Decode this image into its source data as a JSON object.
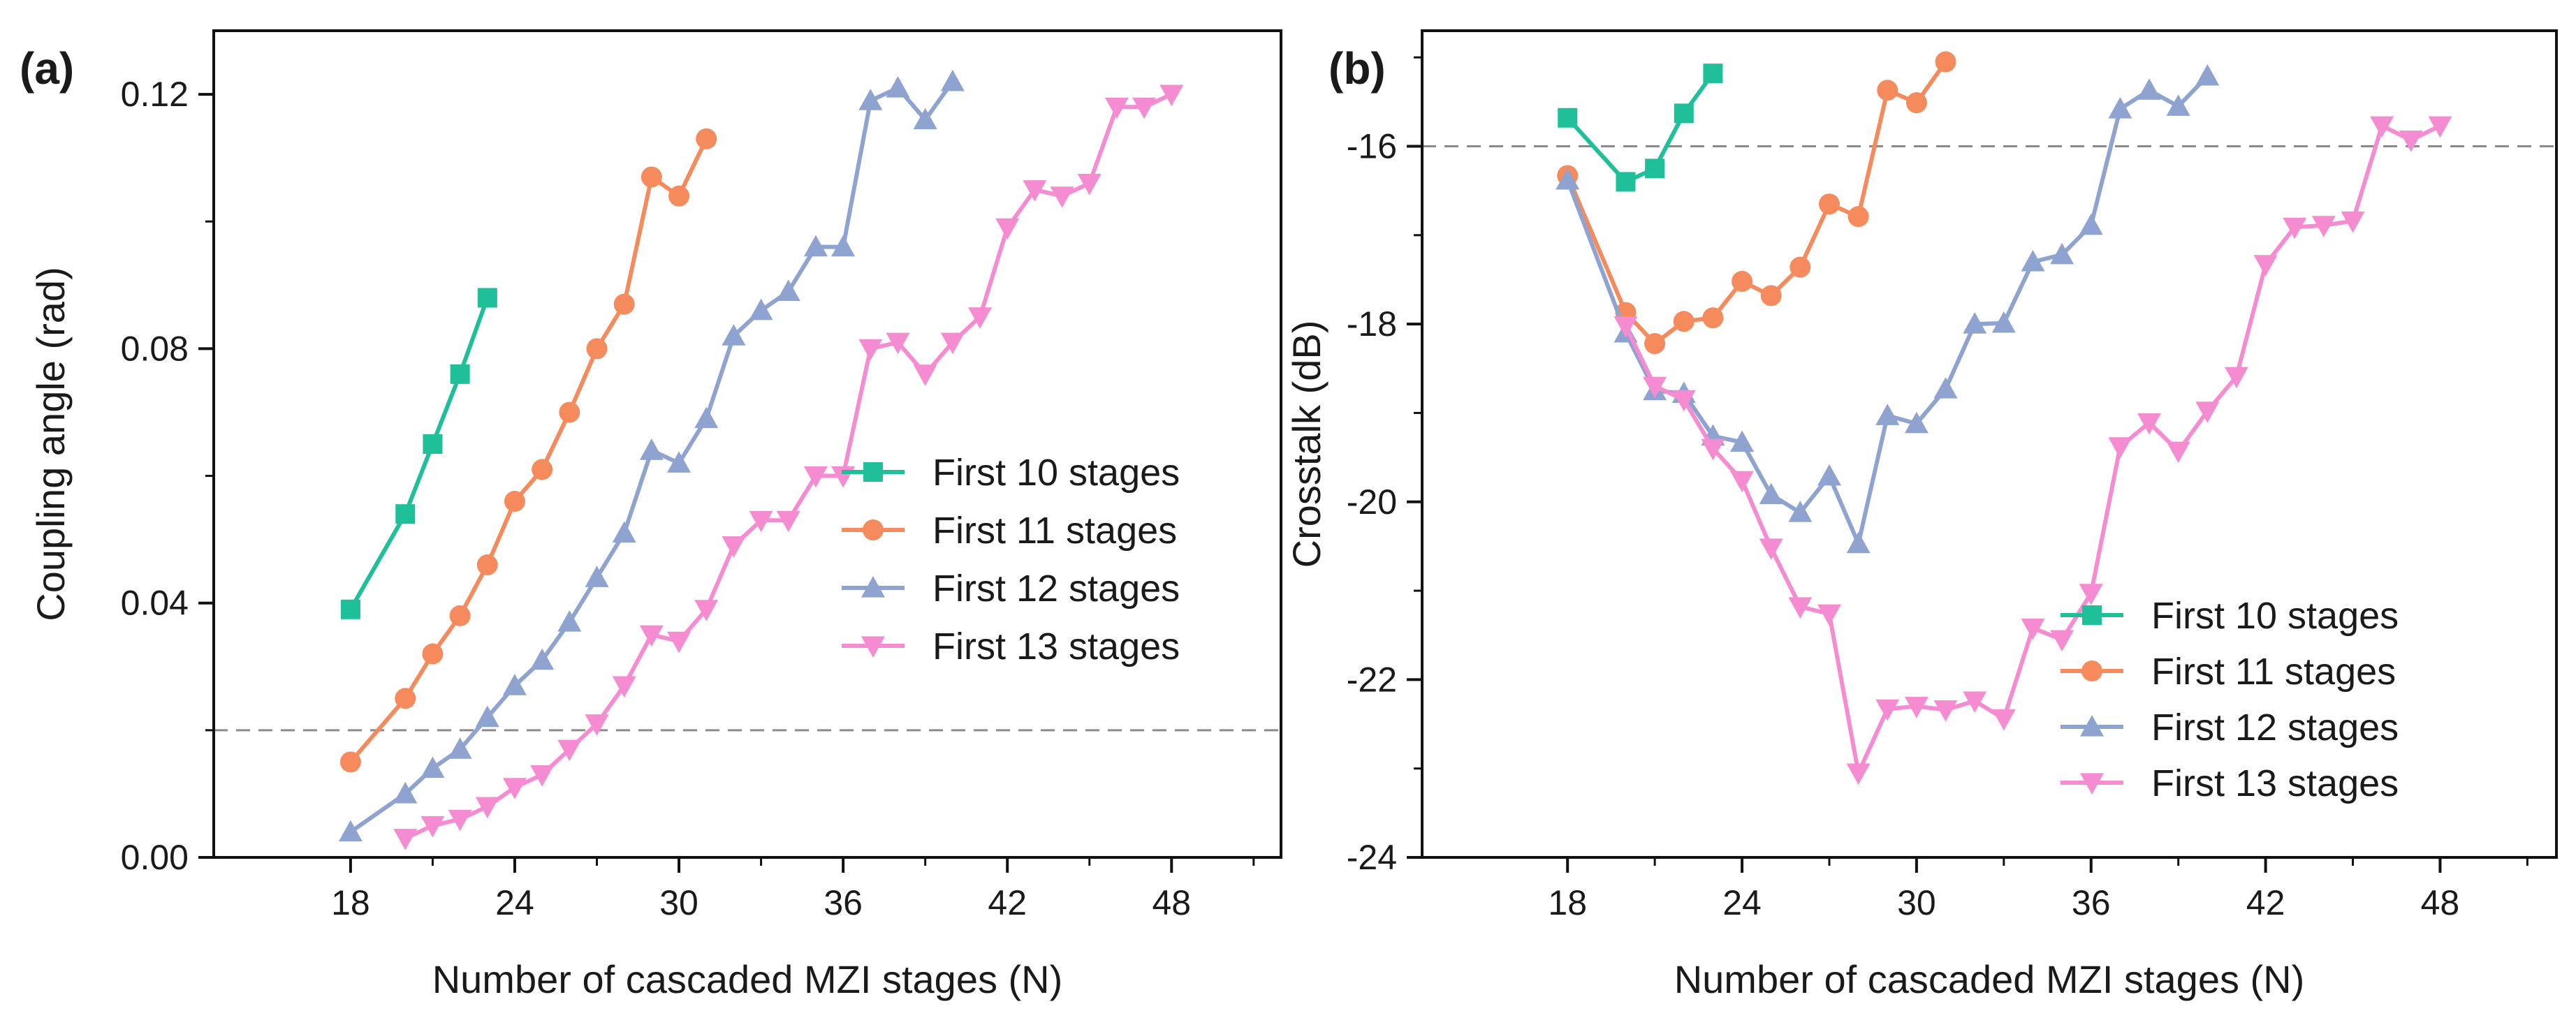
{
  "chart_data": [
    {
      "type": "line",
      "panel_label": "(a)",
      "xlabel": "Number of cascaded MZI stages (N)",
      "ylabel": "Coupling angle (rad)",
      "xlim": [
        13,
        52
      ],
      "ylim": [
        0,
        0.13
      ],
      "xticks": [
        18,
        24,
        30,
        36,
        42,
        48
      ],
      "xtick_labels": [
        "18",
        "24",
        "30",
        "36",
        "42",
        "48"
      ],
      "yticks": [
        0,
        0.04,
        0.08,
        0.12
      ],
      "ytick_labels": [
        "0.00",
        "0.04",
        "0.08",
        "0.12"
      ],
      "reference_line": {
        "y": 0.02,
        "style": "dashed"
      },
      "legend_position": "center-right",
      "grid": false,
      "series": [
        {
          "name": "First 10 stages",
          "color": "#1fbf9a",
          "marker": "square",
          "x": [
            18,
            20,
            21,
            22,
            23
          ],
          "y": [
            0.039,
            0.054,
            0.065,
            0.076,
            0.088
          ]
        },
        {
          "name": "First 11 stages",
          "color": "#f58a5c",
          "marker": "circle",
          "x": [
            18,
            20,
            21,
            22,
            23,
            24,
            25,
            26,
            27,
            28,
            29,
            30,
            31
          ],
          "y": [
            0.015,
            0.025,
            0.032,
            0.038,
            0.046,
            0.056,
            0.061,
            0.07,
            0.08,
            0.087,
            0.107,
            0.104,
            0.113
          ]
        },
        {
          "name": "First 12 stages",
          "color": "#8ea3cf",
          "marker": "triangle-up",
          "x": [
            18,
            20,
            21,
            22,
            23,
            24,
            25,
            26,
            27,
            28,
            29,
            30,
            31,
            32,
            33,
            34,
            35,
            36,
            37,
            38,
            39,
            40
          ],
          "y": [
            0.004,
            0.01,
            0.014,
            0.017,
            0.022,
            0.027,
            0.031,
            0.037,
            0.044,
            0.051,
            0.064,
            0.062,
            0.069,
            0.082,
            0.086,
            0.089,
            0.096,
            0.096,
            0.119,
            0.121,
            0.116,
            0.122
          ]
        },
        {
          "name": "First 13 stages",
          "color": "#f58bd0",
          "marker": "triangle-down",
          "x": [
            20,
            21,
            22,
            23,
            24,
            25,
            26,
            27,
            28,
            29,
            30,
            31,
            32,
            33,
            34,
            35,
            36,
            37,
            38,
            39,
            40,
            41,
            42,
            43,
            44,
            45,
            46,
            47,
            48
          ],
          "y": [
            0.003,
            0.005,
            0.006,
            0.008,
            0.011,
            0.013,
            0.017,
            0.021,
            0.027,
            0.035,
            0.034,
            0.039,
            0.049,
            0.053,
            0.053,
            0.06,
            0.06,
            0.08,
            0.081,
            0.076,
            0.081,
            0.085,
            0.099,
            0.105,
            0.104,
            0.106,
            0.118,
            0.118,
            0.12
          ]
        }
      ]
    },
    {
      "type": "line",
      "panel_label": "(b)",
      "xlabel": "Number of cascaded MZI stages (N)",
      "ylabel": "Crosstalk (dB)",
      "xlim": [
        13,
        52
      ],
      "ylim": [
        -24,
        -14.7
      ],
      "xticks": [
        18,
        24,
        30,
        36,
        42,
        48
      ],
      "xtick_labels": [
        "18",
        "24",
        "30",
        "36",
        "42",
        "48"
      ],
      "yticks": [
        -24,
        -22,
        -20,
        -18,
        -16
      ],
      "ytick_labels": [
        "-24",
        "-22",
        "-20",
        "-18",
        "-16"
      ],
      "reference_line": {
        "y": -16,
        "style": "dashed"
      },
      "legend_position": "bottom-right",
      "grid": false,
      "series": [
        {
          "name": "First 10 stages",
          "color": "#1fbf9a",
          "marker": "square",
          "x": [
            18,
            20,
            21,
            22,
            23
          ],
          "y": [
            -15.68,
            -16.4,
            -16.25,
            -15.63,
            -15.18
          ]
        },
        {
          "name": "First 11 stages",
          "color": "#f58a5c",
          "marker": "circle",
          "x": [
            18,
            20,
            21,
            22,
            23,
            24,
            25,
            26,
            27,
            28,
            29,
            30,
            31
          ],
          "y": [
            -16.33,
            -17.87,
            -18.22,
            -17.97,
            -17.93,
            -17.52,
            -17.68,
            -17.36,
            -16.65,
            -16.79,
            -15.37,
            -15.51,
            -15.05
          ]
        },
        {
          "name": "First 12 stages",
          "color": "#8ea3cf",
          "marker": "triangle-up",
          "x": [
            18,
            20,
            21,
            22,
            23,
            24,
            25,
            26,
            27,
            28,
            29,
            30,
            31,
            32,
            33,
            34,
            35,
            36,
            37,
            38,
            39,
            40
          ],
          "y": [
            -16.38,
            -18.1,
            -18.75,
            -18.78,
            -19.26,
            -19.33,
            -19.92,
            -20.12,
            -19.71,
            -20.47,
            -19.03,
            -19.12,
            -18.73,
            -18.0,
            -17.99,
            -17.3,
            -17.22,
            -16.89,
            -15.58,
            -15.37,
            -15.55,
            -15.21
          ]
        },
        {
          "name": "First 13 stages",
          "color": "#f58bd0",
          "marker": "triangle-down",
          "x": [
            20,
            21,
            22,
            23,
            24,
            25,
            26,
            27,
            28,
            29,
            30,
            31,
            32,
            33,
            34,
            35,
            36,
            37,
            38,
            39,
            40,
            41,
            42,
            43,
            44,
            45,
            46,
            47,
            48
          ],
          "y": [
            -18.02,
            -18.7,
            -18.85,
            -19.4,
            -19.76,
            -20.52,
            -21.18,
            -21.26,
            -23.05,
            -22.33,
            -22.3,
            -22.34,
            -22.24,
            -22.44,
            -21.42,
            -21.55,
            -21.03,
            -19.38,
            -19.11,
            -19.43,
            -18.98,
            -18.59,
            -17.33,
            -16.91,
            -16.89,
            -16.84,
            -15.77,
            -15.93,
            -15.77
          ]
        }
      ]
    }
  ]
}
